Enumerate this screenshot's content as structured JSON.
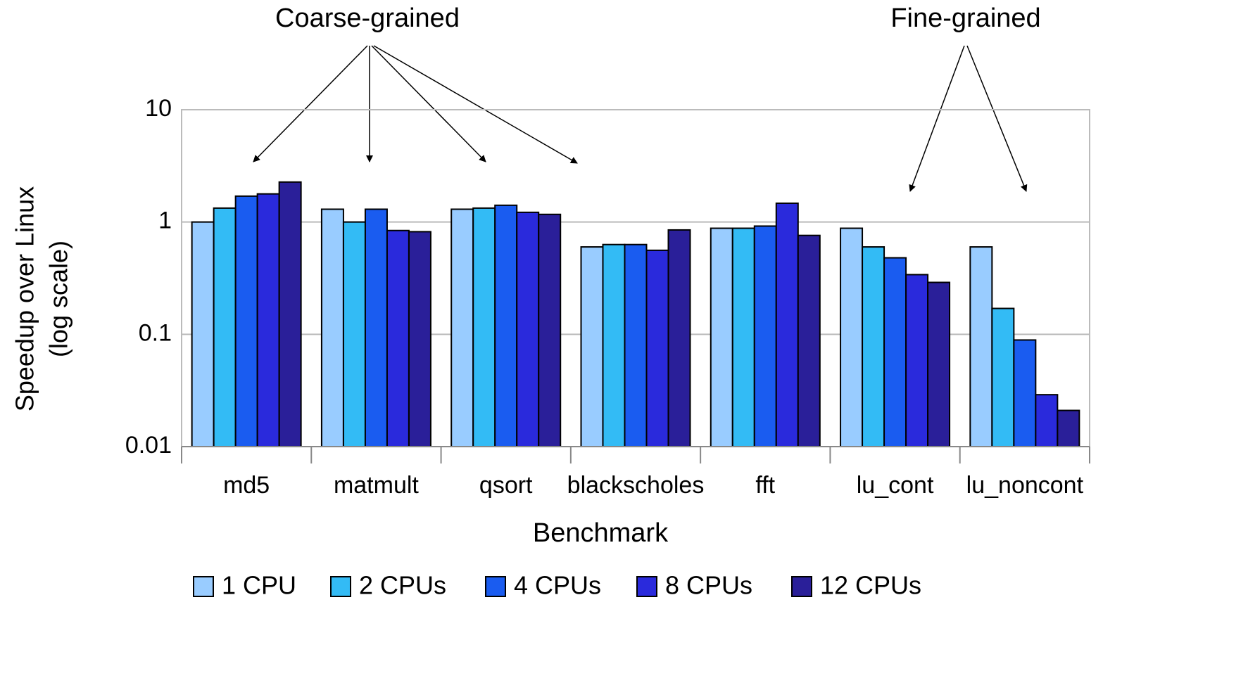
{
  "chart_data": {
    "type": "bar",
    "ylabel": [
      "Speedup over Linux",
      "(log scale)"
    ],
    "xlabel": "Benchmark",
    "annotations": [
      "Coarse-grained",
      "Fine-grained"
    ],
    "categories": [
      "md5",
      "matmult",
      "qsort",
      "blackscholes",
      "fft",
      "lu_cont",
      "lu_noncont"
    ],
    "series": [
      {
        "name": "1 CPU",
        "color": "#99ccff",
        "values": [
          1.0,
          1.3,
          1.3,
          0.6,
          0.88,
          0.88,
          0.6
        ]
      },
      {
        "name": "2 CPUs",
        "color": "#33bbf5",
        "values": [
          1.33,
          1.0,
          1.33,
          0.63,
          0.88,
          0.6,
          0.17
        ]
      },
      {
        "name": "4 CPUs",
        "color": "#1a5cf0",
        "values": [
          1.7,
          1.3,
          1.41,
          0.63,
          0.92,
          0.48,
          0.089
        ]
      },
      {
        "name": "8 CPUs",
        "color": "#2a2adc",
        "values": [
          1.78,
          0.84,
          1.22,
          0.56,
          1.47,
          0.34,
          0.029
        ]
      },
      {
        "name": "12 CPUs",
        "color": "#2a1f99",
        "values": [
          2.27,
          0.82,
          1.17,
          0.85,
          0.76,
          0.29,
          0.021
        ]
      }
    ],
    "ylim": [
      0.01,
      10
    ],
    "yticks": [
      0.01,
      0.1,
      1,
      10
    ],
    "log_y": true,
    "grid": true,
    "legend": "bottom"
  }
}
